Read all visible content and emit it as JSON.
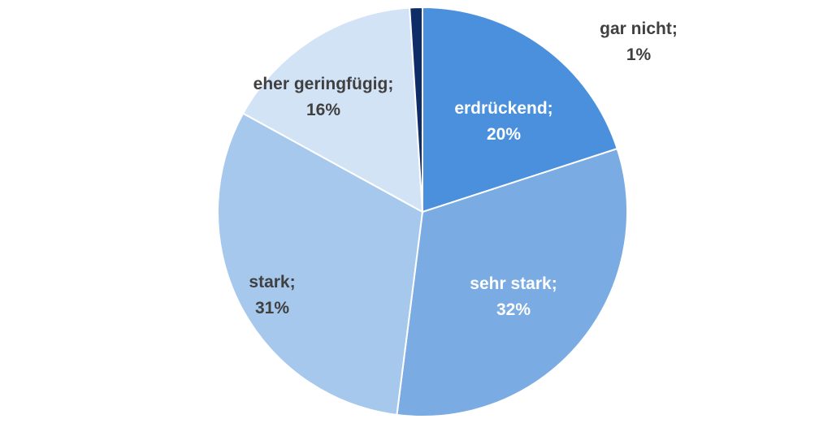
{
  "chart_data": {
    "type": "pie",
    "slices": [
      {
        "label": "erdrückend",
        "value": 20,
        "color": "#4a90dc",
        "label_color": "#ffffff",
        "line1": "erdrückend;",
        "line2": "20%"
      },
      {
        "label": "sehr stark",
        "value": 32,
        "color": "#7aabe2",
        "label_color": "#ffffff",
        "line1": "sehr stark;",
        "line2": "32%"
      },
      {
        "label": "stark",
        "value": 31,
        "color": "#a7c8ed",
        "label_color": "#404040",
        "line1": "stark;",
        "line2": "31%"
      },
      {
        "label": "eher geringfügig",
        "value": 16,
        "color": "#d3e3f6",
        "label_color": "#404040",
        "line1": "eher geringfügig;",
        "line2": "16%"
      },
      {
        "label": "gar nicht",
        "value": 1,
        "color": "#0e2d66",
        "label_color": "#404040",
        "line1": "gar nicht;",
        "line2": "1%"
      }
    ]
  }
}
